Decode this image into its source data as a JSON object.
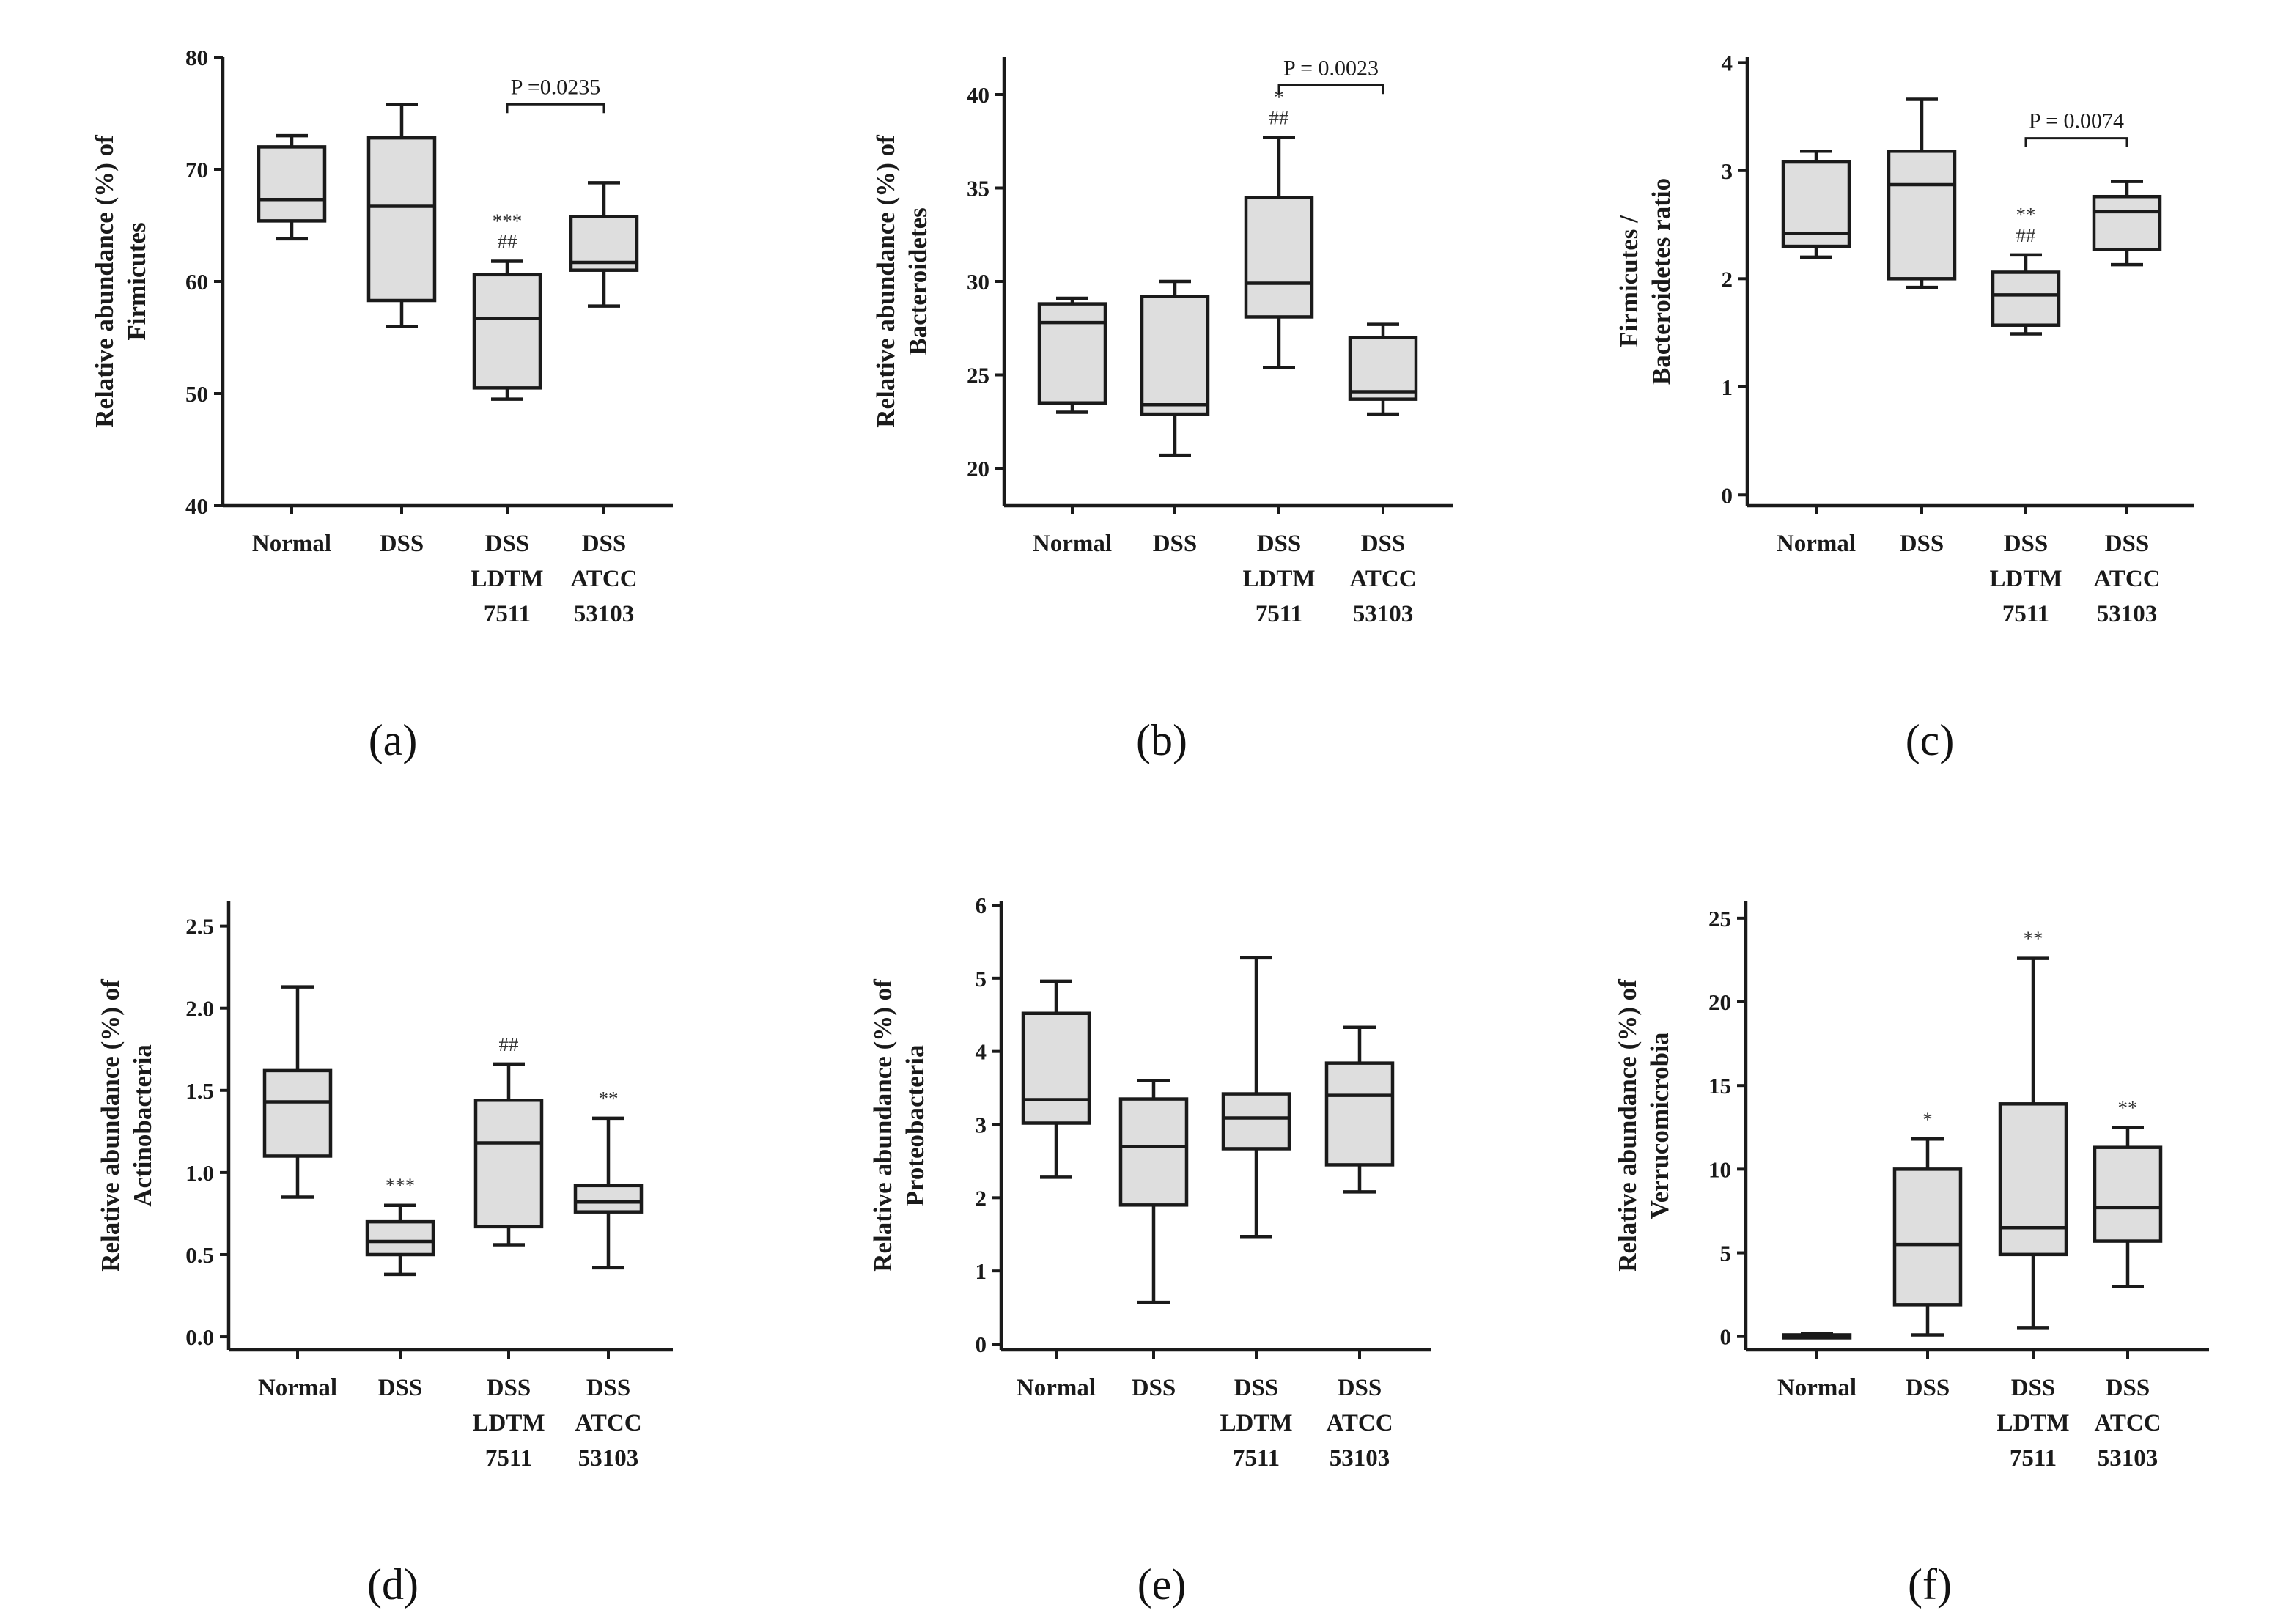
{
  "figure": {
    "panels": [
      {
        "letter": "a",
        "label": "(a)"
      },
      {
        "letter": "b",
        "label": "(b)"
      },
      {
        "letter": "c",
        "label": "(c)"
      },
      {
        "letter": "d",
        "label": "(d)"
      },
      {
        "letter": "e",
        "label": "(e)"
      },
      {
        "letter": "f",
        "label": "(f)"
      }
    ]
  },
  "chart_data": [
    {
      "type": "box",
      "id": "a",
      "panel_label": "(a)",
      "ylabel": [
        "Relative abundance (%) of",
        "Firmicutes"
      ],
      "ylim": [
        40,
        80
      ],
      "yticks": [
        "40",
        "50",
        "60",
        "70",
        "80"
      ],
      "yticks_values": [
        40,
        50,
        60,
        70,
        80
      ],
      "categories": [
        [
          "Normal"
        ],
        [
          "DSS"
        ],
        [
          "DSS",
          "LDTM",
          "7511"
        ],
        [
          "DSS",
          "ATCC",
          "53103"
        ]
      ],
      "boxes": [
        {
          "min": 63.8,
          "q1": 65.4,
          "median": 67.3,
          "q3": 72.0,
          "max": 73.0
        },
        {
          "min": 56.0,
          "q1": 58.3,
          "median": 66.7,
          "q3": 72.8,
          "max": 75.8
        },
        {
          "min": 49.5,
          "q1": 50.5,
          "median": 56.7,
          "q3": 60.6,
          "max": 61.8
        },
        {
          "min": 57.8,
          "q1": 61.0,
          "median": 61.7,
          "q3": 65.8,
          "max": 68.8
        }
      ],
      "annotations": [
        {
          "category": 2,
          "lines": [
            "***",
            "##"
          ]
        }
      ],
      "bracket": {
        "from": 2,
        "to": 3,
        "y": 75.8,
        "label": "P =0.0235"
      }
    },
    {
      "type": "box",
      "id": "b",
      "panel_label": "(b)",
      "ylabel": [
        "Relative abundance (%) of",
        "Bacteroidetes"
      ],
      "ylim": [
        18,
        42
      ],
      "yticks": [
        "20",
        "25",
        "30",
        "35",
        "40"
      ],
      "yticks_values": [
        20,
        25,
        30,
        35,
        40
      ],
      "categories": [
        [
          "Normal"
        ],
        [
          "DSS"
        ],
        [
          "DSS",
          "LDTM",
          "7511"
        ],
        [
          "DSS",
          "ATCC",
          "53103"
        ]
      ],
      "boxes": [
        {
          "min": 23.0,
          "q1": 23.5,
          "median": 27.8,
          "q3": 28.8,
          "max": 29.1
        },
        {
          "min": 20.7,
          "q1": 22.9,
          "median": 23.4,
          "q3": 29.2,
          "max": 30.0
        },
        {
          "min": 25.4,
          "q1": 28.1,
          "median": 29.9,
          "q3": 34.5,
          "max": 37.7
        },
        {
          "min": 22.9,
          "q1": 23.7,
          "median": 24.1,
          "q3": 27.0,
          "max": 27.7
        }
      ],
      "annotations": [
        {
          "category": 2,
          "lines": [
            "*",
            "##"
          ]
        }
      ],
      "bracket": {
        "from": 2,
        "to": 3,
        "y": 40.5,
        "label": "P = 0.0023"
      }
    },
    {
      "type": "box",
      "id": "c",
      "panel_label": "(c)",
      "ylabel": [
        "Firmicutes /",
        "Bacteroidetes ratio"
      ],
      "ylim": [
        -0.1,
        4.05
      ],
      "yticks": [
        "0",
        "1",
        "2",
        "3",
        "4"
      ],
      "yticks_values": [
        0,
        1,
        2,
        3,
        4
      ],
      "categories": [
        [
          "Normal"
        ],
        [
          "DSS"
        ],
        [
          "DSS",
          "LDTM",
          "7511"
        ],
        [
          "DSS",
          "ATCC",
          "53103"
        ]
      ],
      "boxes": [
        {
          "min": 2.2,
          "q1": 2.3,
          "median": 2.42,
          "q3": 3.08,
          "max": 3.18
        },
        {
          "min": 1.92,
          "q1": 2.0,
          "median": 2.87,
          "q3": 3.18,
          "max": 3.66
        },
        {
          "min": 1.49,
          "q1": 1.57,
          "median": 1.85,
          "q3": 2.06,
          "max": 2.22
        },
        {
          "min": 2.13,
          "q1": 2.27,
          "median": 2.62,
          "q3": 2.76,
          "max": 2.9
        }
      ],
      "annotations": [
        {
          "category": 2,
          "lines": [
            "**",
            "##"
          ]
        }
      ],
      "bracket": {
        "from": 2,
        "to": 3,
        "y": 3.3,
        "label": "P = 0.0074"
      }
    },
    {
      "type": "box",
      "id": "d",
      "panel_label": "(d)",
      "ylabel": [
        "Relative abundance (%) of",
        "Actinobacteria"
      ],
      "ylim": [
        -0.08,
        2.65
      ],
      "yticks": [
        "0.0",
        "0.5",
        "1.0",
        "1.5",
        "2.0",
        "2.5"
      ],
      "yticks_values": [
        0,
        0.5,
        1.0,
        1.5,
        2.0,
        2.5
      ],
      "categories": [
        [
          "Normal"
        ],
        [
          "DSS"
        ],
        [
          "DSS",
          "LDTM",
          "7511"
        ],
        [
          "DSS",
          "ATCC",
          "53103"
        ]
      ],
      "boxes": [
        {
          "min": 0.85,
          "q1": 1.1,
          "median": 1.43,
          "q3": 1.62,
          "max": 2.13
        },
        {
          "min": 0.38,
          "q1": 0.5,
          "median": 0.58,
          "q3": 0.7,
          "max": 0.8
        },
        {
          "min": 0.56,
          "q1": 0.67,
          "median": 1.18,
          "q3": 1.44,
          "max": 1.66
        },
        {
          "min": 0.42,
          "q1": 0.76,
          "median": 0.82,
          "q3": 0.92,
          "max": 1.33
        }
      ],
      "annotations": [
        {
          "category": 1,
          "lines": [
            "***"
          ]
        },
        {
          "category": 2,
          "lines": [
            "##"
          ]
        },
        {
          "category": 3,
          "lines": [
            "**"
          ]
        }
      ],
      "bracket": null
    },
    {
      "type": "box",
      "id": "e",
      "panel_label": "(e)",
      "ylabel": [
        "Relative abundance (%) of",
        "Proteobacteria"
      ],
      "ylim": [
        -0.08,
        6.05
      ],
      "yticks": [
        "0",
        "1",
        "2",
        "3",
        "4",
        "5",
        "6"
      ],
      "yticks_values": [
        0,
        1,
        2,
        3,
        4,
        5,
        6
      ],
      "categories": [
        [
          "Normal"
        ],
        [
          "DSS"
        ],
        [
          "DSS",
          "LDTM",
          "7511"
        ],
        [
          "DSS",
          "ATCC",
          "53103"
        ]
      ],
      "boxes": [
        {
          "min": 2.28,
          "q1": 3.02,
          "median": 3.34,
          "q3": 4.52,
          "max": 4.96
        },
        {
          "min": 0.57,
          "q1": 1.9,
          "median": 2.7,
          "q3": 3.35,
          "max": 3.6
        },
        {
          "min": 1.47,
          "q1": 2.67,
          "median": 3.09,
          "q3": 3.42,
          "max": 5.28
        },
        {
          "min": 2.08,
          "q1": 2.45,
          "median": 3.4,
          "q3": 3.84,
          "max": 4.33
        }
      ],
      "annotations": [],
      "bracket": null
    },
    {
      "type": "box",
      "id": "f",
      "panel_label": "(f)",
      "ylabel": [
        "Relative abundance (%) of",
        "Verrucomicrobia"
      ],
      "ylim": [
        -0.8,
        26
      ],
      "yticks": [
        "0",
        "5",
        "10",
        "15",
        "20",
        "25"
      ],
      "yticks_values": [
        0,
        5,
        10,
        15,
        20,
        25
      ],
      "categories": [
        [
          "Normal"
        ],
        [
          "DSS"
        ],
        [
          "DSS",
          "LDTM",
          "7511"
        ],
        [
          "DSS",
          "ATCC",
          "53103"
        ]
      ],
      "boxes": [
        {
          "min": 0.0,
          "q1": 0.0,
          "median": 0.0,
          "q3": 0.1,
          "max": 0.15
        },
        {
          "min": 0.1,
          "q1": 1.9,
          "median": 5.5,
          "q3": 10.0,
          "max": 11.8
        },
        {
          "min": 0.5,
          "q1": 4.9,
          "median": 6.5,
          "q3": 13.9,
          "max": 22.6
        },
        {
          "min": 3.0,
          "q1": 5.7,
          "median": 7.7,
          "q3": 11.3,
          "max": 12.5
        }
      ],
      "annotations": [
        {
          "category": 1,
          "lines": [
            "*"
          ]
        },
        {
          "category": 2,
          "lines": [
            "**"
          ]
        },
        {
          "category": 3,
          "lines": [
            "**"
          ]
        }
      ],
      "bracket": null
    }
  ]
}
